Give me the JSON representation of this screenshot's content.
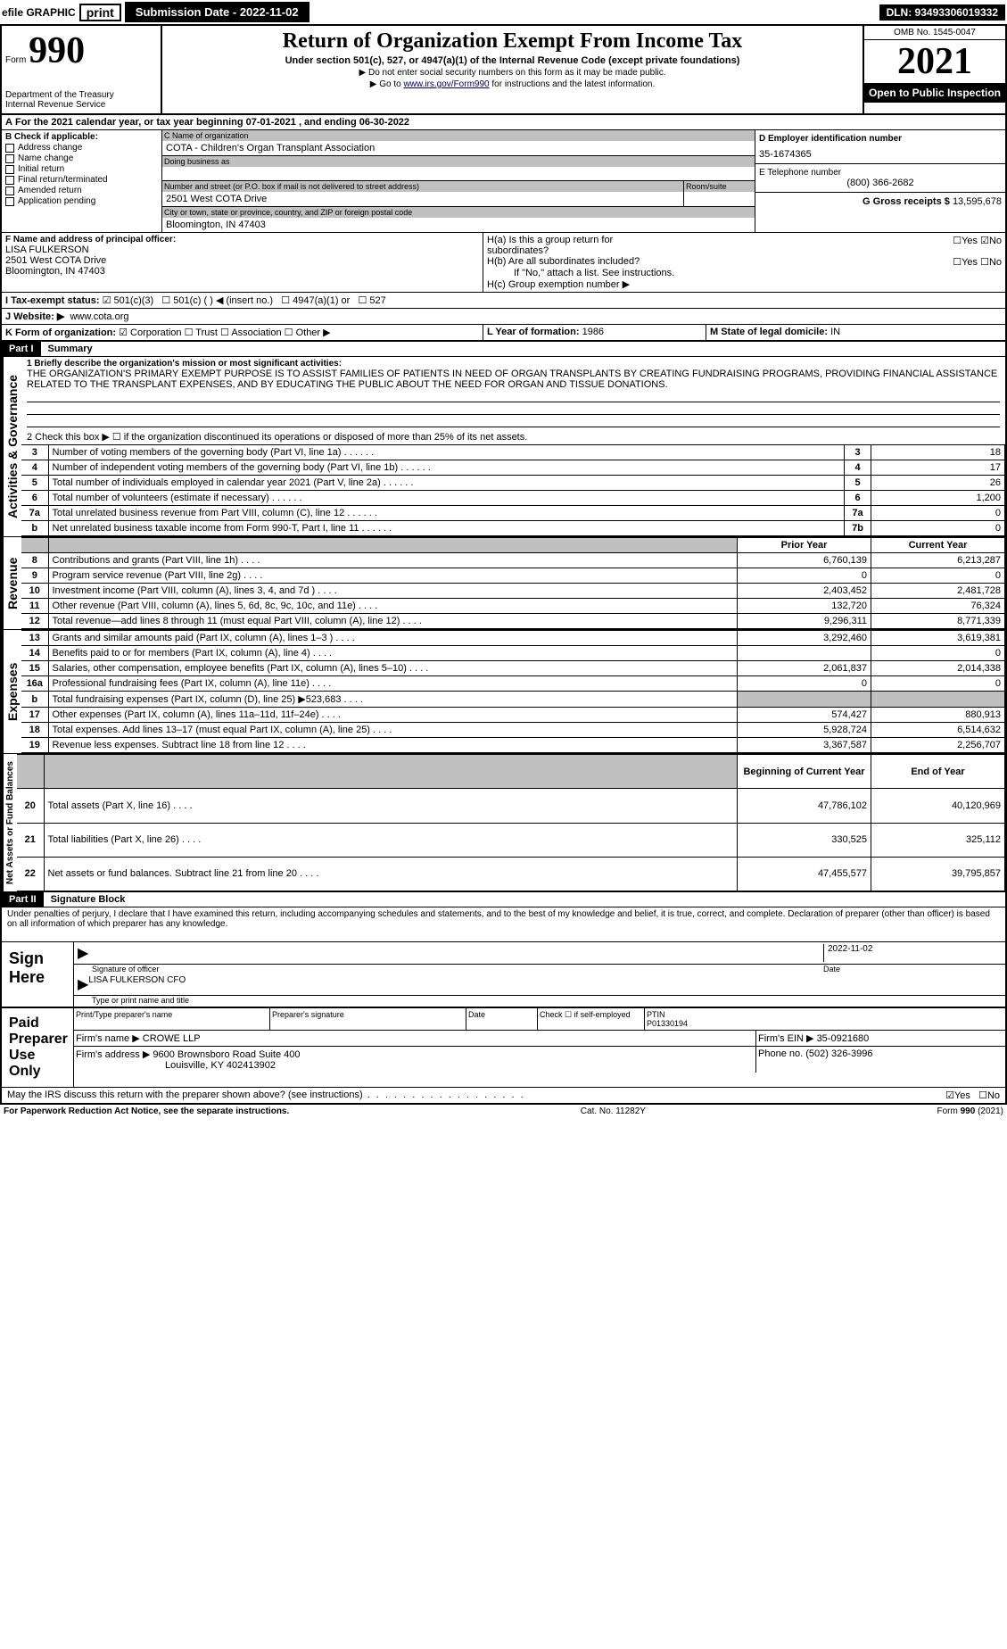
{
  "topbar": {
    "efile": "efile GRAPHIC",
    "print": "print",
    "submission": "Submission Date - 2022-11-02",
    "dln": "DLN: 93493306019332"
  },
  "header": {
    "form_prefix": "Form",
    "form_number": "990",
    "dept": "Department of the Treasury",
    "irs": "Internal Revenue Service",
    "title": "Return of Organization Exempt From Income Tax",
    "subtitle": "Under section 501(c), 527, or 4947(a)(1) of the Internal Revenue Code (except private foundations)",
    "note1": "▶ Do not enter social security numbers on this form as it may be made public.",
    "note2_pre": "▶ Go to ",
    "note2_link": "www.irs.gov/Form990",
    "note2_post": " for instructions and the latest information.",
    "omb": "OMB No. 1545-0047",
    "year": "2021",
    "inspection": "Open to Public Inspection"
  },
  "section_a": {
    "line_a": "For the 2021 calendar year, or tax year beginning 07-01-2021    , and ending 06-30-2022",
    "b_label": "B Check if applicable:",
    "b_options": [
      "Address change",
      "Name change",
      "Initial return",
      "Final return/terminated",
      "Amended return",
      "Application pending"
    ],
    "c_label": "C Name of organization",
    "c_name": "COTA - Children's Organ Transplant Association",
    "dba_label": "Doing business as",
    "street_label": "Number and street (or P.O. box if mail is not delivered to street address)",
    "room_label": "Room/suite",
    "street": "2501 West COTA Drive",
    "city_label": "City or town, state or province, country, and ZIP or foreign postal code",
    "city": "Bloomington, IN  47403",
    "d_label": "D Employer identification number",
    "d_ein": "35-1674365",
    "e_label": "E Telephone number",
    "e_phone": "(800) 366-2682",
    "g_label": "G Gross receipts $",
    "g_amount": "13,595,678",
    "f_label": "F  Name and address of principal officer:",
    "f_name": "LISA FULKERSON",
    "f_addr1": "2501 West COTA Drive",
    "f_addr2": "Bloomington, IN  47403",
    "ha_label": "H(a)  Is this a group return for subordinates?",
    "hb_label": "H(b)  Are all subordinates included?",
    "hb_note": "If \"No,\" attach a list. See instructions.",
    "hc_label": "H(c)  Group exemption number ▶",
    "yes": "Yes",
    "no": "No",
    "i_label": "I  Tax-exempt status:",
    "i_501c3": "501(c)(3)",
    "i_501c": "501(c) (   ) ◀ (insert no.)",
    "i_4947": "4947(a)(1) or",
    "i_527": "527",
    "j_label": "J  Website: ▶",
    "j_site": "www.cota.org",
    "k_label": "K Form of organization:",
    "k_corp": "Corporation",
    "k_trust": "Trust",
    "k_assoc": "Association",
    "k_other": "Other ▶",
    "l_label": "L Year of formation:",
    "l_year": "1986",
    "m_label": "M State of legal domicile:",
    "m_state": "IN"
  },
  "part1": {
    "label": "Part I",
    "title": "Summary",
    "vlabel1": "Activities & Governance",
    "vlabel2": "Revenue",
    "vlabel3": "Expenses",
    "vlabel4": "Net Assets or Fund Balances",
    "line1_label": "1  Briefly describe the organization's mission or most significant activities:",
    "mission": "THE ORGANIZATION'S PRIMARY EXEMPT PURPOSE IS TO ASSIST FAMILIES OF PATIENTS IN NEED OF ORGAN TRANSPLANTS BY CREATING FUNDRAISING PROGRAMS, PROVIDING FINANCIAL ASSISTANCE RELATED TO THE TRANSPLANT EXPENSES, AND BY EDUCATING THE PUBLIC ABOUT THE NEED FOR ORGAN AND TISSUE DONATIONS.",
    "line2": "2   Check this box ▶ ☐ if the organization discontinued its operations or disposed of more than 25% of its net assets.",
    "rows_gov": [
      {
        "n": "3",
        "desc": "Number of voting members of the governing body (Part VI, line 1a)",
        "box": "3",
        "val": "18"
      },
      {
        "n": "4",
        "desc": "Number of independent voting members of the governing body (Part VI, line 1b)",
        "box": "4",
        "val": "17"
      },
      {
        "n": "5",
        "desc": "Total number of individuals employed in calendar year 2021 (Part V, line 2a)",
        "box": "5",
        "val": "26"
      },
      {
        "n": "6",
        "desc": "Total number of volunteers (estimate if necessary)",
        "box": "6",
        "val": "1,200"
      },
      {
        "n": "7a",
        "desc": "Total unrelated business revenue from Part VIII, column (C), line 12",
        "box": "7a",
        "val": "0"
      },
      {
        "n": "b",
        "desc": "Net unrelated business taxable income from Form 990-T, Part I, line 11",
        "box": "7b",
        "val": "0"
      }
    ],
    "col_prior": "Prior Year",
    "col_current": "Current Year",
    "rows_rev": [
      {
        "n": "8",
        "desc": "Contributions and grants (Part VIII, line 1h)",
        "prior": "6,760,139",
        "curr": "6,213,287"
      },
      {
        "n": "9",
        "desc": "Program service revenue (Part VIII, line 2g)",
        "prior": "0",
        "curr": "0"
      },
      {
        "n": "10",
        "desc": "Investment income (Part VIII, column (A), lines 3, 4, and 7d )",
        "prior": "2,403,452",
        "curr": "2,481,728"
      },
      {
        "n": "11",
        "desc": "Other revenue (Part VIII, column (A), lines 5, 6d, 8c, 9c, 10c, and 11e)",
        "prior": "132,720",
        "curr": "76,324"
      },
      {
        "n": "12",
        "desc": "Total revenue—add lines 8 through 11 (must equal Part VIII, column (A), line 12)",
        "prior": "9,296,311",
        "curr": "8,771,339"
      }
    ],
    "rows_exp": [
      {
        "n": "13",
        "desc": "Grants and similar amounts paid (Part IX, column (A), lines 1–3 )",
        "prior": "3,292,460",
        "curr": "3,619,381"
      },
      {
        "n": "14",
        "desc": "Benefits paid to or for members (Part IX, column (A), line 4)",
        "prior": "",
        "curr": "0"
      },
      {
        "n": "15",
        "desc": "Salaries, other compensation, employee benefits (Part IX, column (A), lines 5–10)",
        "prior": "2,061,837",
        "curr": "2,014,338"
      },
      {
        "n": "16a",
        "desc": "Professional fundraising fees (Part IX, column (A), line 11e)",
        "prior": "0",
        "curr": "0"
      },
      {
        "n": "b",
        "desc": "Total fundraising expenses (Part IX, column (D), line 25) ▶523,683",
        "prior": "GRAY",
        "curr": "GRAY"
      },
      {
        "n": "17",
        "desc": "Other expenses (Part IX, column (A), lines 11a–11d, 11f–24e)",
        "prior": "574,427",
        "curr": "880,913"
      },
      {
        "n": "18",
        "desc": "Total expenses. Add lines 13–17 (must equal Part IX, column (A), line 25)",
        "prior": "5,928,724",
        "curr": "6,514,632"
      },
      {
        "n": "19",
        "desc": "Revenue less expenses. Subtract line 18 from line 12",
        "prior": "3,367,587",
        "curr": "2,256,707"
      }
    ],
    "col_begin": "Beginning of Current Year",
    "col_end": "End of Year",
    "rows_net": [
      {
        "n": "20",
        "desc": "Total assets (Part X, line 16)",
        "prior": "47,786,102",
        "curr": "40,120,969"
      },
      {
        "n": "21",
        "desc": "Total liabilities (Part X, line 26)",
        "prior": "330,525",
        "curr": "325,112"
      },
      {
        "n": "22",
        "desc": "Net assets or fund balances. Subtract line 21 from line 20",
        "prior": "47,455,577",
        "curr": "39,795,857"
      }
    ]
  },
  "part2": {
    "label": "Part II",
    "title": "Signature Block",
    "penalty": "Under penalties of perjury, I declare that I have examined this return, including accompanying schedules and statements, and to the best of my knowledge and belief, it is true, correct, and complete. Declaration of preparer (other than officer) is based on all information of which preparer has any knowledge.",
    "sign_here": "Sign Here",
    "sig_officer": "Signature of officer",
    "sig_date": "2022-11-02",
    "date_label": "Date",
    "officer_name": "LISA FULKERSON CFO",
    "type_name": "Type or print name and title",
    "paid_label": "Paid Preparer Use Only",
    "prep_name_label": "Print/Type preparer's name",
    "prep_sig_label": "Preparer's signature",
    "prep_date_label": "Date",
    "check_if": "Check ☐ if self-employed",
    "ptin_label": "PTIN",
    "ptin": "P01330194",
    "firm_name_label": "Firm's name    ▶",
    "firm_name": "CROWE LLP",
    "firm_ein_label": "Firm's EIN ▶",
    "firm_ein": "35-0921680",
    "firm_addr_label": "Firm's address ▶",
    "firm_addr1": "9600 Brownsboro Road Suite 400",
    "firm_addr2": "Louisville, KY  402413902",
    "phone_label": "Phone no.",
    "phone": "(502) 326-3996",
    "discuss": "May the IRS discuss this return with the preparer shown above? (see instructions)",
    "discuss_yes": "Yes",
    "discuss_no": "No"
  },
  "footer": {
    "paperwork": "For Paperwork Reduction Act Notice, see the separate instructions.",
    "cat": "Cat. No. 11282Y",
    "form": "Form 990 (2021)"
  },
  "colors": {
    "black": "#000000",
    "gray": "#c0c0c0",
    "link": "#000066"
  }
}
